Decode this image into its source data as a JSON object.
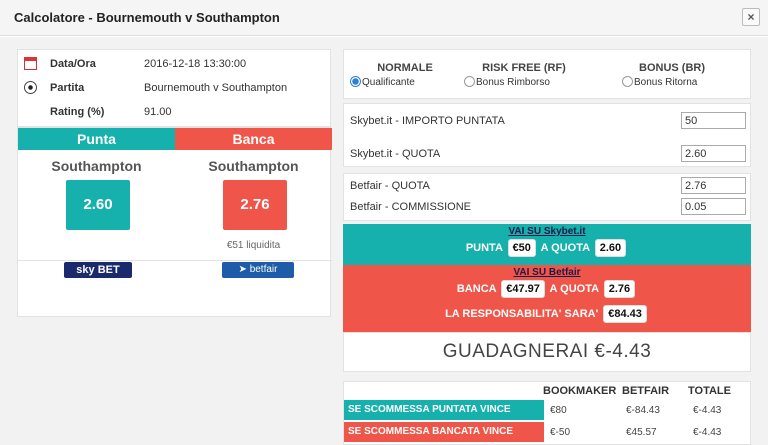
{
  "modal": {
    "title": "Calcolatore - Bournemouth v Southampton",
    "close_label": "×"
  },
  "info": {
    "date_label": "Data/Ora",
    "date_value": "2016-12-18 13:30:00",
    "match_label": "Partita",
    "match_value": "Bournemouth v Southampton",
    "rating_label": "Rating (%)",
    "rating_value": "91.00"
  },
  "punta": {
    "header": "Punta",
    "team": "Southampton",
    "odds": "2.60",
    "color": "#16b0ad",
    "bookmaker_logo": "sky BET"
  },
  "banca": {
    "header": "Banca",
    "team": "Southampton",
    "odds": "2.76",
    "liquidity": "€51 liquidita",
    "color": "#f0554a",
    "exchange_logo": "betfair"
  },
  "modes": [
    {
      "title": "NORMALE",
      "option": "Qualificante",
      "selected": true
    },
    {
      "title": "RISK FREE (RF)",
      "option": "Bonus Rimborso",
      "selected": false
    },
    {
      "title": "BONUS (BR)",
      "option": "Bonus Ritorna",
      "selected": false
    }
  ],
  "bookmaker_form": {
    "stake_label": "Skybet.it - IMPORTO PUNTATA",
    "stake_value": "50",
    "odds_label": "Skybet.it - QUOTA",
    "odds_value": "2.60"
  },
  "exchange_form": {
    "odds_label": "Betfair - QUOTA",
    "odds_value": "2.76",
    "commission_label": "Betfair - COMMISSIONE",
    "commission_value": "0.05"
  },
  "punta_instruction": {
    "link": "VAI SU Skybet.it",
    "action": "PUNTA",
    "amount": "€50",
    "odds_word": "A QUOTA",
    "odds": "2.60"
  },
  "banca_instruction": {
    "link": "VAI SU Betfair",
    "action": "BANCA",
    "amount": "€47.97",
    "odds_word": "A QUOTA",
    "odds": "2.76",
    "liability_label": "LA RESPONSABILITA' SARA'",
    "liability": "€84.43"
  },
  "result": {
    "label": "GUADAGNERAI €-4.43"
  },
  "summary_table": {
    "headers": [
      "BOOKMAKER",
      "BETFAIR",
      "TOTALE"
    ],
    "rows": [
      {
        "label": "SE SCOMMESSA PUNTATA VINCE",
        "bookmaker": "€80",
        "betfair": "€-84.43",
        "total": "€-4.43"
      },
      {
        "label": "SE SCOMMESSA BANCATA VINCE",
        "bookmaker": "€-50",
        "betfair": "€45.57",
        "total": "€-4.43"
      }
    ]
  }
}
